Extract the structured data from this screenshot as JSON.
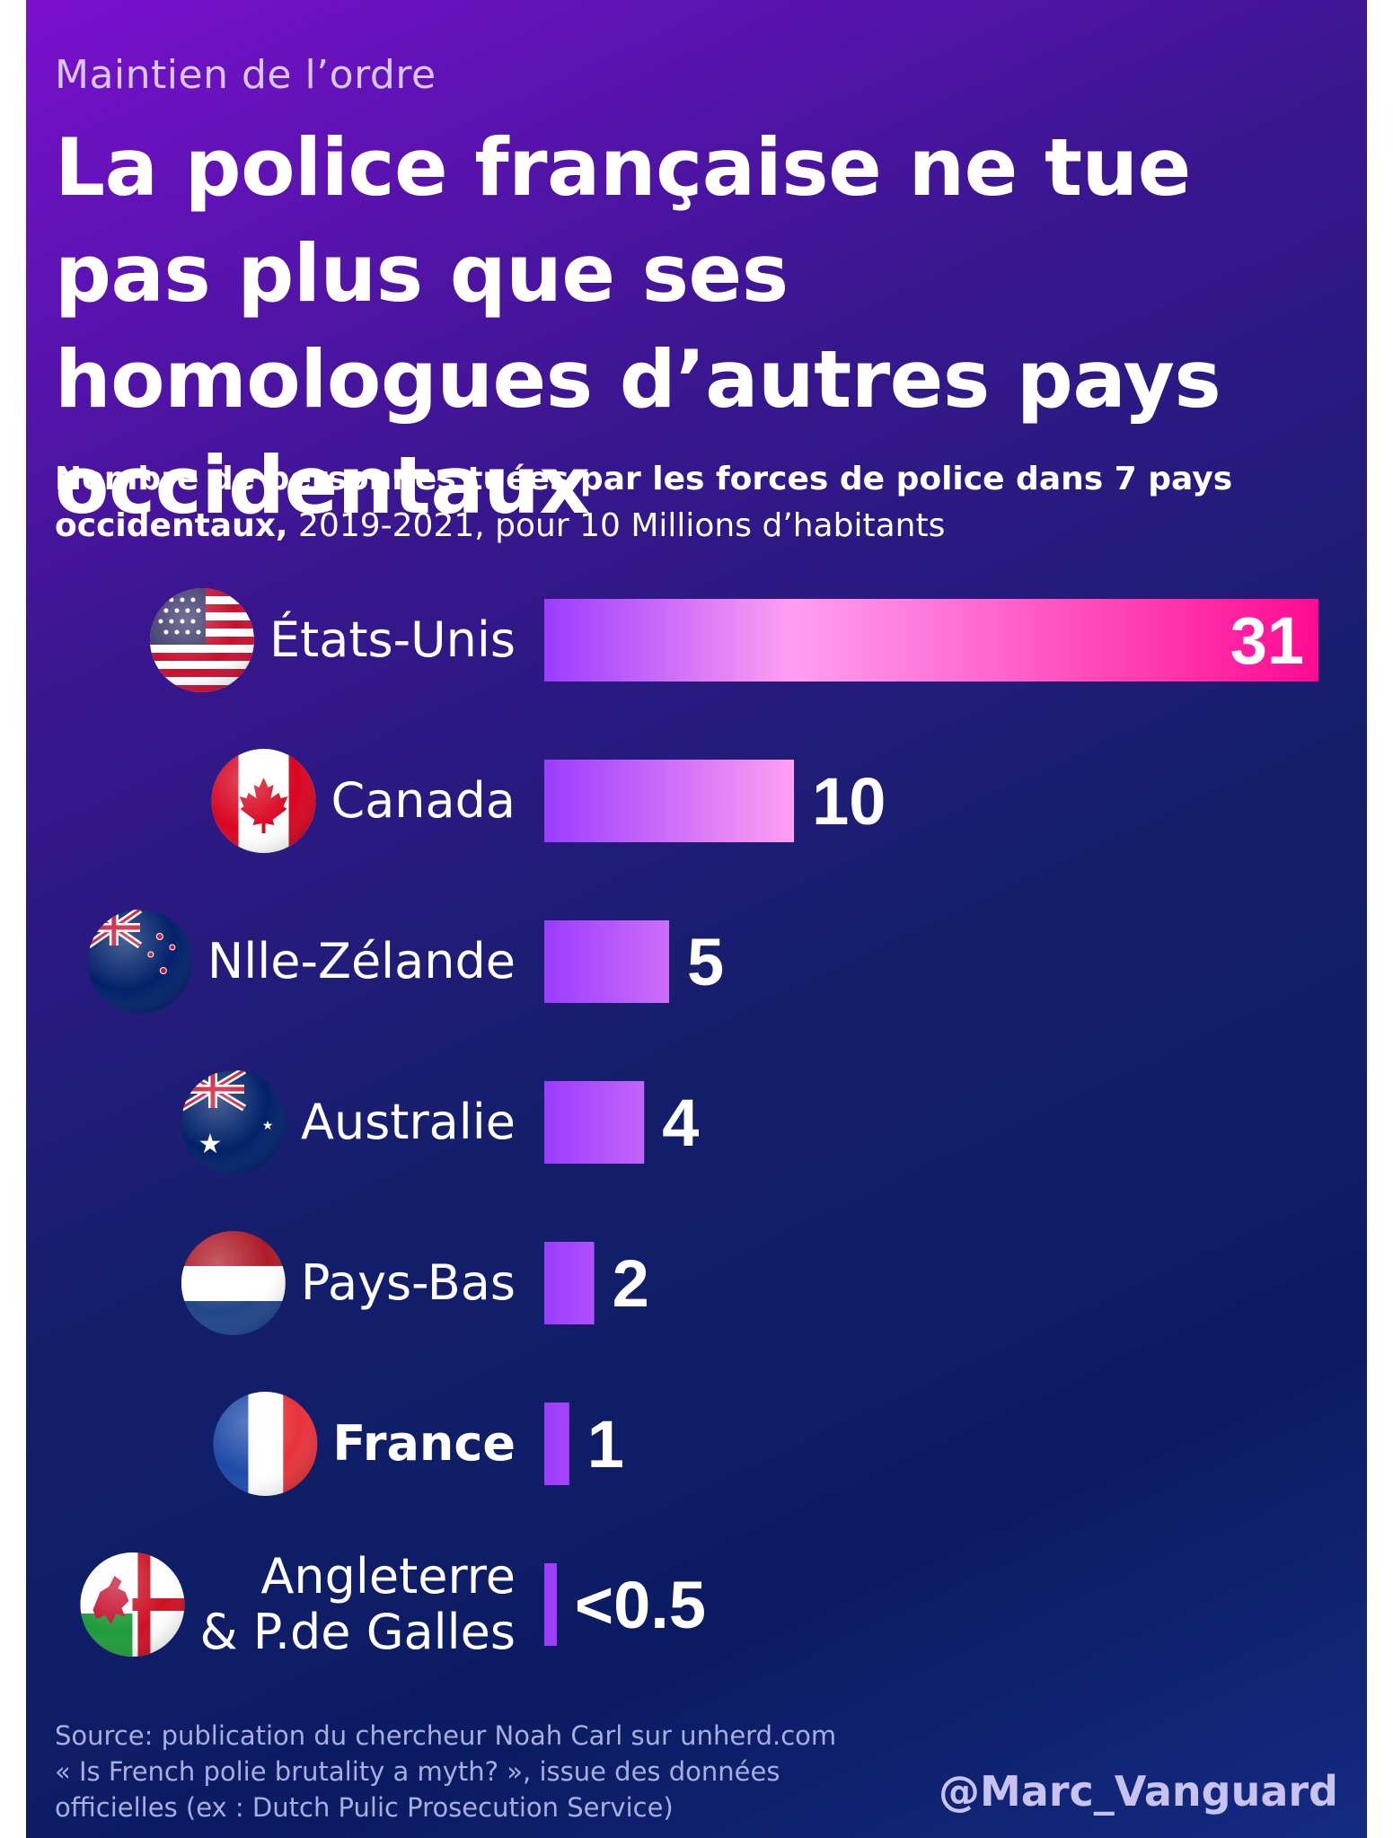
{
  "kicker": "Maintien de l’ordre",
  "title": "La police française ne tue pas plus que ses homologues d’autres pays occidentaux",
  "subtitle_bold": "Nombre de personnes tuées par les forces de police dans 7 pays occidentaux,",
  "subtitle_rest": " 2019-2021, pour 10 Millions d’habitants",
  "source_lines": [
    "Source: publication du chercheur Noah Carl sur unherd.com",
    "« Is French polie brutality a myth? », issue des données",
    "officielles (ex : Dutch Pulic Prosecution Service)"
  ],
  "handle": "@Marc_Vanguard",
  "chart_data": {
    "type": "bar",
    "orientation": "horizontal",
    "categories": [
      "États-Unis",
      "Canada",
      "Nlle-Zélande",
      "Australie",
      "Pays-Bas",
      "France",
      "Angleterre & P.de Galles"
    ],
    "category_lines": [
      [
        "États-Unis"
      ],
      [
        "Canada"
      ],
      [
        "Nlle-Zélande"
      ],
      [
        "Australie"
      ],
      [
        "Pays-Bas"
      ],
      [
        "France"
      ],
      [
        "Angleterre",
        "& P.de Galles"
      ]
    ],
    "values": [
      31,
      10,
      5,
      4,
      2,
      1,
      0.5
    ],
    "value_labels": [
      "31",
      "10",
      "5",
      "4",
      "2",
      "1",
      "<0.5"
    ],
    "highlight": "France",
    "flag_icons": [
      "usa-flag-icon",
      "canada-flag-icon",
      "new-zealand-flag-icon",
      "australia-flag-icon",
      "netherlands-flag-icon",
      "france-flag-icon",
      "england-wales-flag-icon"
    ],
    "xlim": [
      0,
      31
    ],
    "grid": false,
    "colors": {
      "bar_start": "#9b3cff",
      "bar_mid": "#ff9ff3",
      "bar_end": "#ff0a92",
      "text": "#ffffff"
    }
  }
}
